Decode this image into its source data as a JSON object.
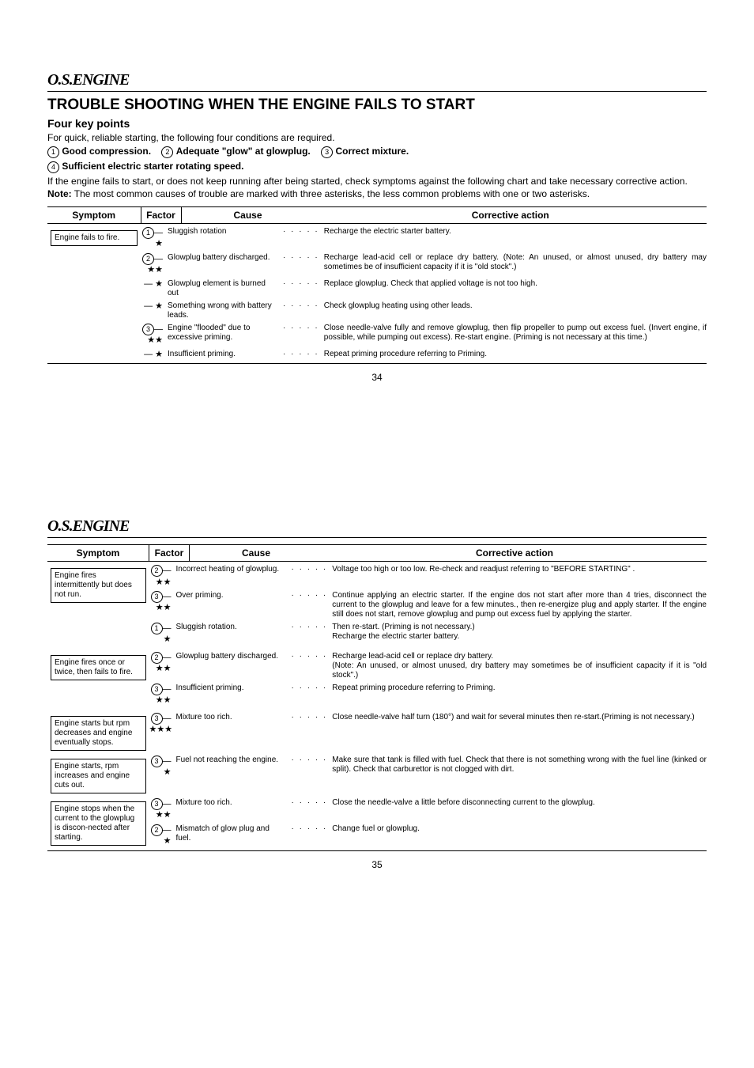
{
  "p34": {
    "logo": "O.S.",
    "logo_eng": "ENGINE",
    "title": "TROUBLE SHOOTING WHEN THE ENGINE FAILS TO START",
    "sub": "Four key points",
    "intro": "For quick, reliable starting, the following four conditions are required.",
    "k1": "Good compression.",
    "k2": "Adequate \"glow\" at glowplug.",
    "k3": "Correct mixture.",
    "k4": "Sufficient electric starter rotating speed.",
    "body1": "If the engine fails to start, or does not keep running after being started, check symptoms against the following chart and take necessary corrective action.",
    "note_lbl": "Note:",
    "body2": "The most common causes of trouble are marked with three asterisks, the less common problems with one or two asterisks.",
    "h_sym": "Symptom",
    "h_fac": "Factor",
    "h_cause": "Cause",
    "h_act": "Corrective action",
    "sym1": "Engine fails to fire.",
    "r": [
      {
        "f": "①",
        "s": "★",
        "c": "Sluggish rotation",
        "a": "Recharge the electric starter battery."
      },
      {
        "f": "②",
        "s": "★★",
        "c": "Glowplug battery discharged.",
        "a": "Recharge lead-acid cell or replace dry battery. (Note: An unused, or almost unused, dry battery may sometimes be of insufficient capacity if it is \"old stock\".)"
      },
      {
        "f": "",
        "s": "★",
        "c": "Glowplug element is burned out",
        "a": "Replace glowplug. Check that applied voltage is not too high."
      },
      {
        "f": "",
        "s": "★",
        "c": "Something wrong with battery leads.",
        "a": "Check glowplug heating using other leads."
      },
      {
        "f": "③",
        "s": "★★",
        "c": "Engine \"flooded\" due to excessive priming.",
        "a": "Close needle-valve fully and remove glowplug, then flip propeller to pump out excess fuel. (Invert engine, if possible, while pumping out excess). Re-start engine. (Priming is not necessary at this time.)"
      },
      {
        "f": "",
        "s": "★",
        "c": "Insufficient priming.",
        "a": "Repeat priming procedure referring to Priming."
      }
    ],
    "pagenum": "34"
  },
  "p35": {
    "h_sym": "Symptom",
    "h_fac": "Factor",
    "h_cause": "Cause",
    "h_act": "Corrective action",
    "sym1": "Engine fires intermittently but does not run.",
    "r1": [
      {
        "f": "②",
        "s": "★★",
        "c": "Incorrect heating of glowplug.",
        "a": "Voltage too high or too low. Re-check and readjust referring to \"BEFORE STARTING\" ."
      },
      {
        "f": "③",
        "s": "★★",
        "c": "Over priming.",
        "a": "Continue applying an electric starter. If the engine dos not start after more than 4 tries, disconnect the current to the glowplug and leave for a few minutes., then re-energize plug and apply starter. If the engine still does not start, remove glowplug and pump out excess fuel by applying the starter."
      },
      {
        "f": "①",
        "s": "★",
        "c": "Sluggish rotation.",
        "a": "Then re-start. (Priming is not necessary.)\nRecharge the electric starter battery."
      }
    ],
    "sym2": "Engine fires once or twice, then fails to fire.",
    "r2": [
      {
        "f": "②",
        "s": "★★",
        "c": "Glowplug battery discharged.",
        "a": "Recharge lead-acid cell or replace dry battery.\n(Note: An unused, or almost unused, dry battery may sometimes be of insufficient capacity if it is \"old stock\".)"
      },
      {
        "f": "③",
        "s": "★★",
        "c": "Insufficient priming.",
        "a": "Repeat priming procedure referring to Priming."
      }
    ],
    "sym3": "Engine starts but rpm decreases and engine eventually stops.",
    "r3": [
      {
        "f": "③",
        "s": "★★★",
        "c": "Mixture too rich.",
        "a": "Close needle-valve half turn (180°) and wait for several minutes then re-start.(Priming is not necessary.)"
      }
    ],
    "sym4": "Engine starts, rpm increases and engine cuts out.",
    "r4": [
      {
        "f": "③",
        "s": "★",
        "c": "Fuel not reaching the engine.",
        "a": "Make sure that tank is filled with fuel. Check that there is not something wrong with the fuel line (kinked or split). Check that carburettor is not clogged with dirt."
      }
    ],
    "sym5": "Engine stops when the current to the glowplug is discon-nected after starting.",
    "r5": [
      {
        "f": "③",
        "s": "★★",
        "c": "Mixture too rich.",
        "a": "Close the needle-valve a little before disconnecting current to the glowplug."
      },
      {
        "f": "②",
        "s": "★",
        "c": "Mismatch of glow plug and fuel.",
        "a": "Change fuel or glowplug."
      }
    ],
    "pagenum": "35"
  }
}
